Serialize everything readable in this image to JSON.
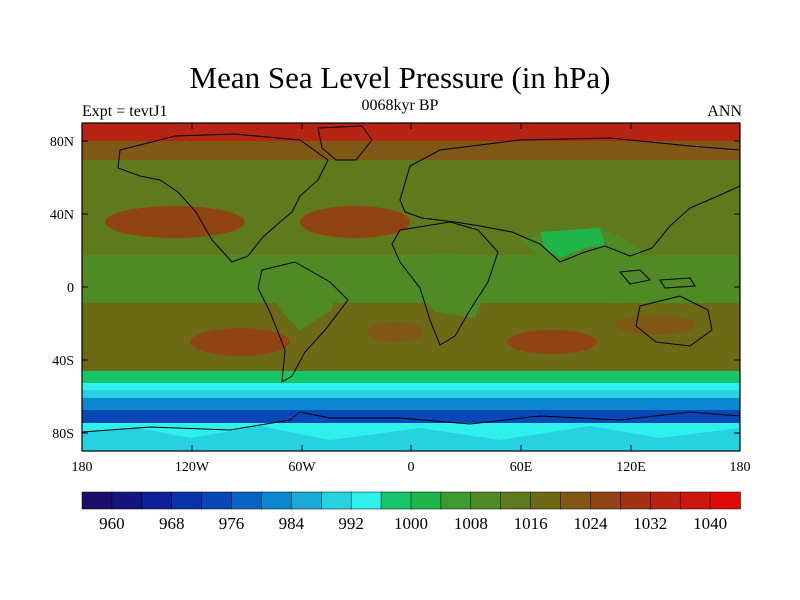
{
  "title": "Mean Sea Level Pressure (in hPa)",
  "subtitle_left": "Expt = tevtJ1",
  "subtitle_center": "0068kyr BP",
  "subtitle_right": "ANN",
  "lat_ticks": [
    "80N",
    "40N",
    "0",
    "40S",
    "80S"
  ],
  "lon_ticks": [
    "180",
    "120W",
    "60W",
    "0",
    "60E",
    "120E",
    "180"
  ],
  "colorbar": {
    "labels": [
      "960",
      "968",
      "976",
      "984",
      "992",
      "1000",
      "1008",
      "1016",
      "1024",
      "1032",
      "1040"
    ],
    "colors": [
      "#1c0f6b",
      "#16157e",
      "#0c1f94",
      "#0a31aa",
      "#0847b8",
      "#0763c4",
      "#0b86cf",
      "#1aa9d8",
      "#26d2e0",
      "#2ef1ec",
      "#17c46a",
      "#1fb54a",
      "#3e9a30",
      "#4f8a24",
      "#5e7a1c",
      "#6d6a16",
      "#7e5814",
      "#904414",
      "#a23214",
      "#b82414",
      "#cc1612",
      "#df0a0a"
    ]
  },
  "regions": {
    "polar_north": "#b82414",
    "north_high": "#7e5814",
    "subtropic_high": "#904414",
    "equatorial": "#4f8a24",
    "tropical_band": "#5e7a1c",
    "low_green": "#3e9a30",
    "india_low": "#1fb54a",
    "south_mid": "#6d6a16",
    "southern_low_green": "#17c46a",
    "southern_cyan": "#2ef1ec",
    "southern_light_blue": "#26d2e0",
    "southern_blue": "#0b86cf",
    "southern_deep": "#0847b8",
    "antarctic": "#2ef1ec"
  }
}
